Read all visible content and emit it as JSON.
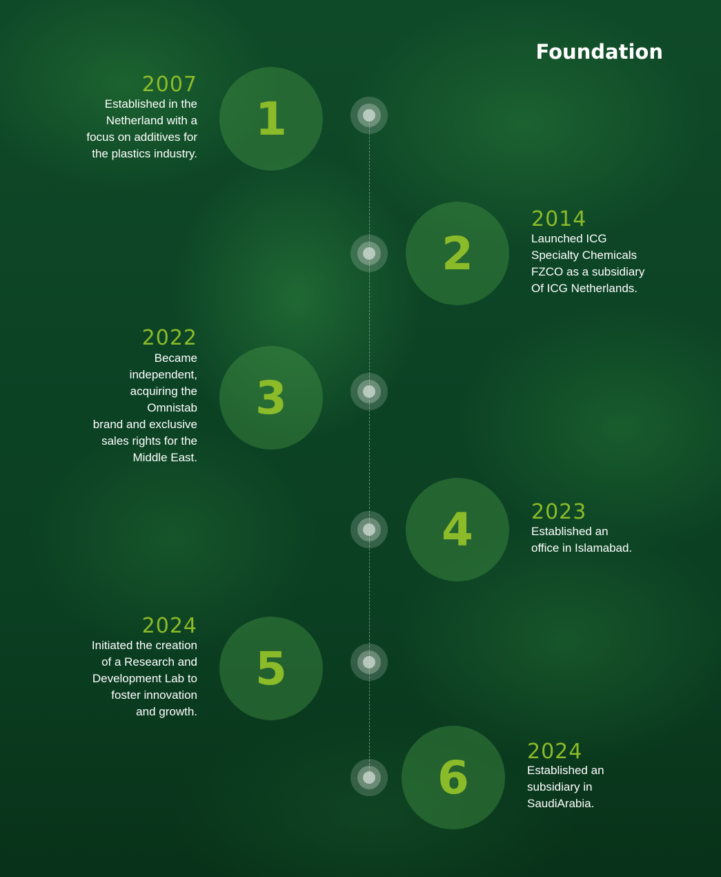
{
  "title": "Foundation",
  "milestones": [
    {
      "number": "1",
      "year": "2007",
      "text": "Established in the\nNetherland with a\nfocus on additives for\nthe plastics industry."
    },
    {
      "number": "2",
      "year": "2014",
      "text": "Launched ICG\nSpecialty Chemicals\nFZCO as a subsidiary\nOf ICG Netherlands."
    },
    {
      "number": "3",
      "year": "2022",
      "text": "Became\nindependent,\nacquiring the\nOmnistab\nbrand and exclusive\nsales rights for the\nMiddle East."
    },
    {
      "number": "4",
      "year": "2023",
      "text": "Established an\noffice in Islamabad."
    },
    {
      "number": "5",
      "year": "2024",
      "text": "Initiated the creation\nof a Research and\nDevelopment Lab to\nfoster innovation\nand growth."
    },
    {
      "number": "6",
      "year": "2024",
      "text": "Established an\nsubsidiary in\nSaudiArabia."
    }
  ],
  "colors": {
    "accent": "#8cbb2a",
    "background": "#0c4325",
    "text": "#ffffff"
  }
}
